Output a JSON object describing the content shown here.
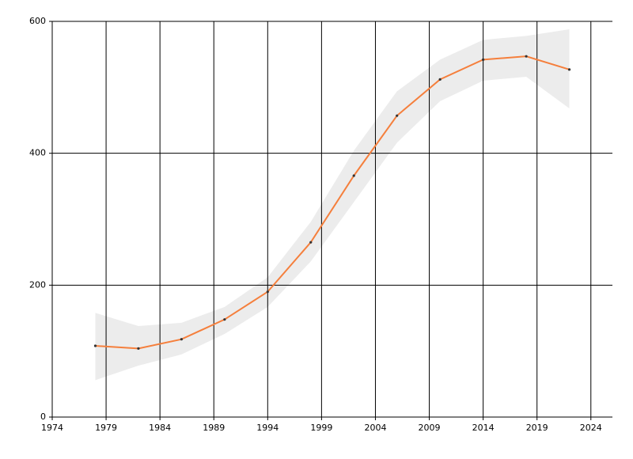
{
  "chart_data": {
    "type": "line",
    "x": [
      1978,
      1982,
      1986,
      1990,
      1994,
      1998,
      2002,
      2006,
      2010,
      2014,
      2018,
      2022
    ],
    "values": [
      108,
      104,
      118,
      148,
      190,
      265,
      366,
      457,
      512,
      542,
      547,
      527
    ],
    "band_upper": [
      158,
      138,
      143,
      167,
      212,
      296,
      404,
      494,
      542,
      572,
      578,
      588
    ],
    "band_lower": [
      56,
      78,
      95,
      126,
      167,
      236,
      326,
      416,
      479,
      510,
      516,
      468
    ],
    "color": "#f57f3c",
    "band_color": "#ececec",
    "marker_color": "#333333",
    "xlim": [
      1974,
      2026
    ],
    "xticks": [
      1974,
      1979,
      1984,
      1989,
      1994,
      1999,
      2004,
      2009,
      2014,
      2019,
      2024
    ],
    "ylim": [
      0,
      600
    ],
    "yticks": [
      0,
      200,
      400,
      600
    ],
    "grid": true
  }
}
